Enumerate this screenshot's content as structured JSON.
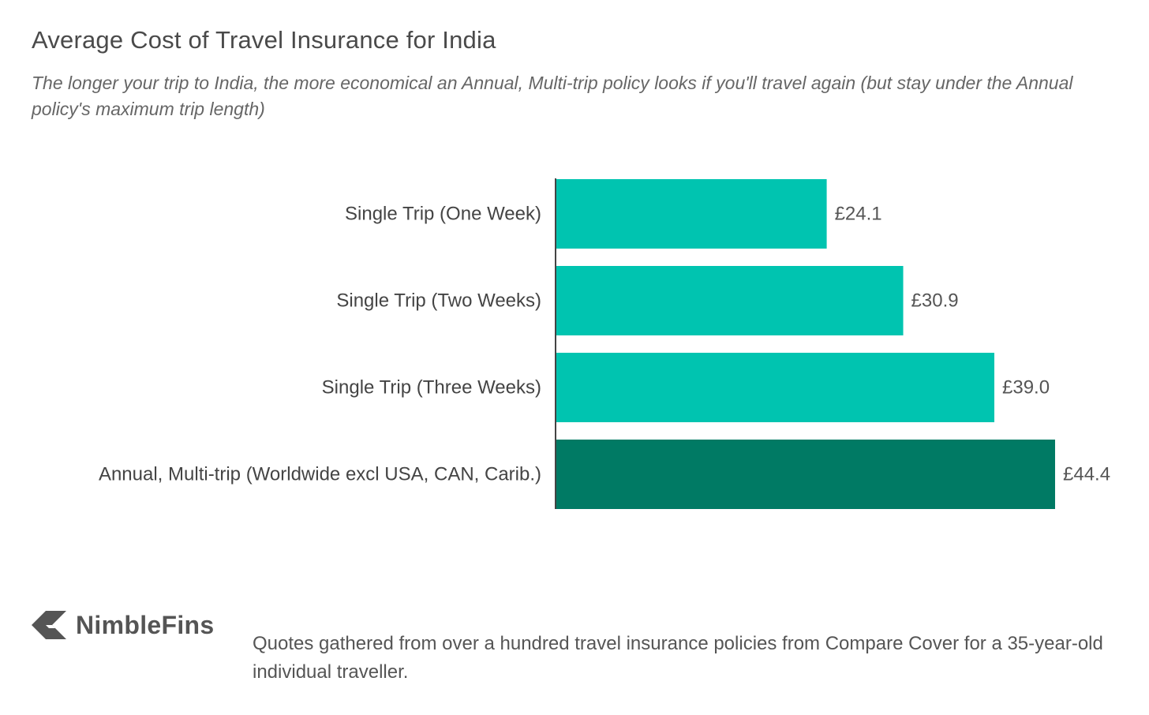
{
  "chart_data": {
    "type": "bar",
    "orientation": "horizontal",
    "title": "Average Cost of Travel Insurance for India",
    "subtitle": "The longer your trip to India, the more economical an Annual, Multi-trip policy looks if you'll travel again (but stay under the Annual policy's maximum trip length)",
    "categories": [
      "Single Trip (One Week)",
      "Single Trip (Two Weeks)",
      "Single Trip (Three Weeks)",
      "Annual, Multi-trip (Worldwide excl USA, CAN, Carib.)"
    ],
    "values": [
      24.1,
      30.9,
      39.0,
      44.4
    ],
    "value_labels": [
      "£24.1",
      "£30.9",
      "£39.0",
      "£44.4"
    ],
    "bar_colors": [
      "#00c4b0",
      "#00c4b0",
      "#00c4b0",
      "#007a64"
    ],
    "xlim": [
      0,
      44.4
    ],
    "grid": false,
    "legend": "none"
  },
  "brand": {
    "name": "NimbleFins",
    "icon": "nimblefins-arrow-icon",
    "color": "#555555"
  },
  "footnote": "Quotes gathered from over a hundred travel insurance policies from Compare Cover for a 35-year-old individual traveller."
}
